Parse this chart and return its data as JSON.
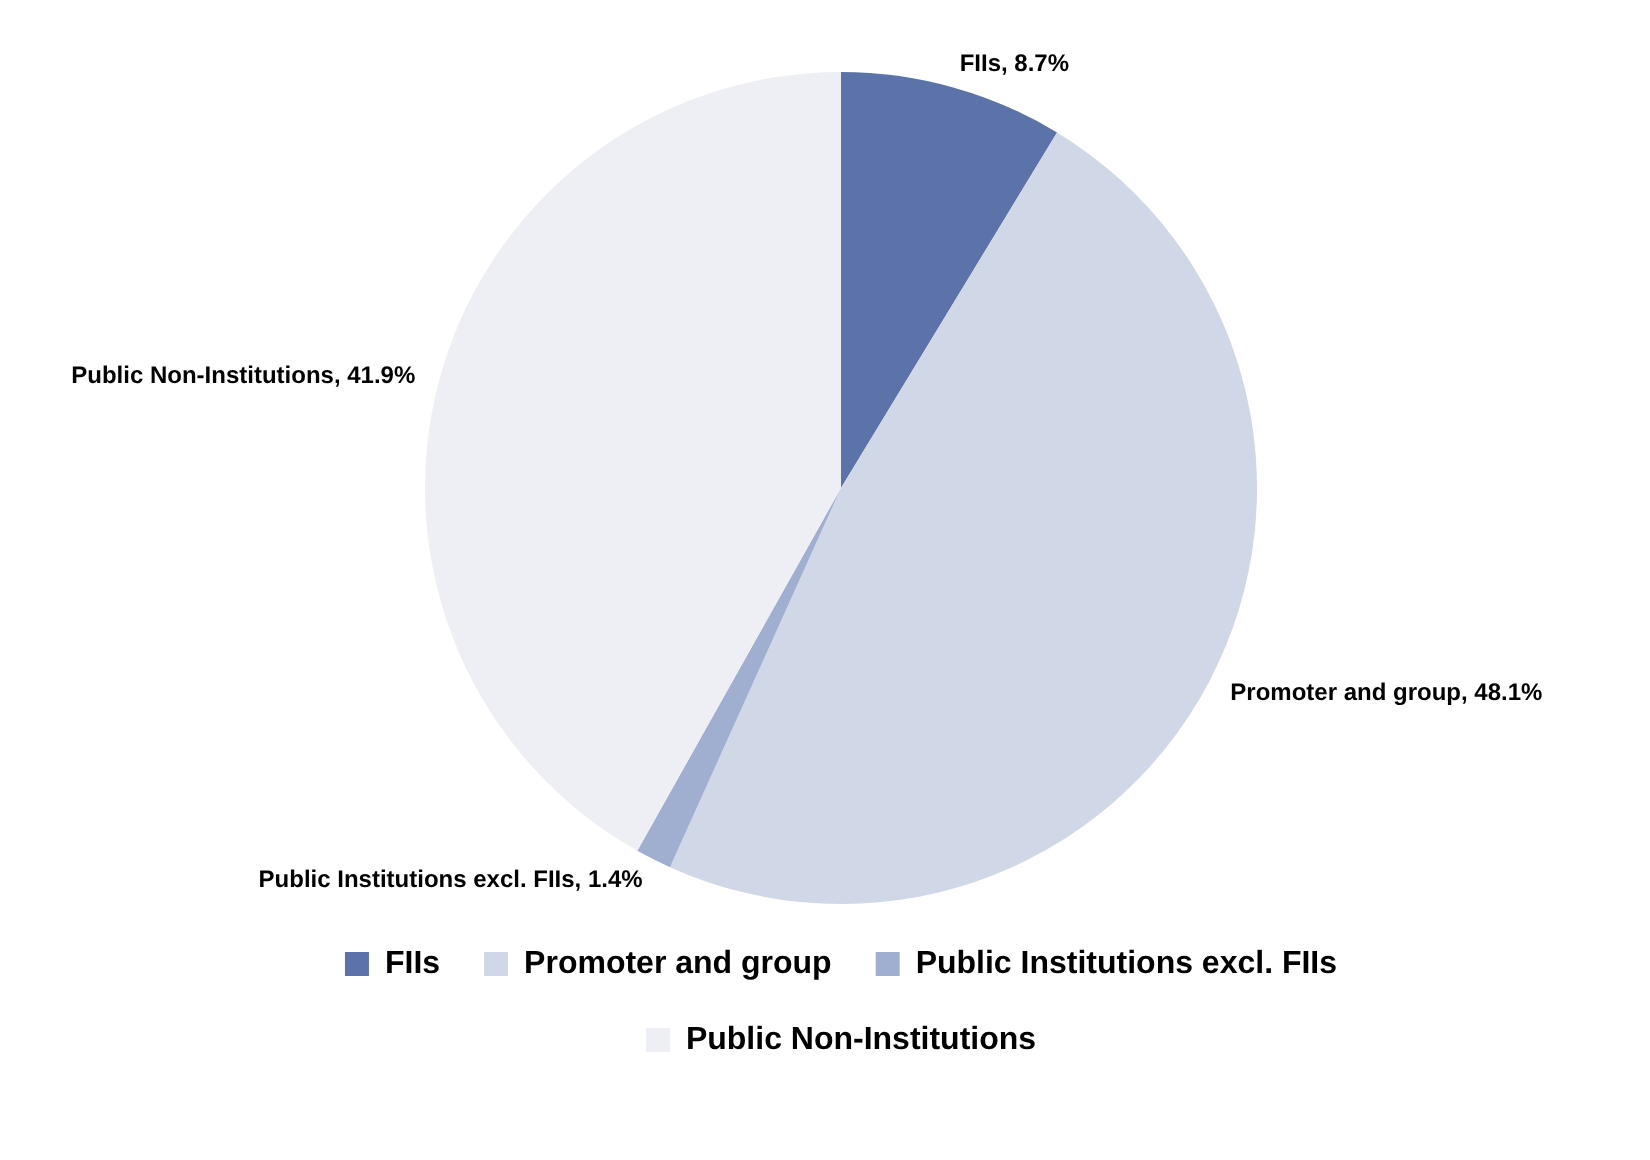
{
  "chart_data": {
    "type": "pie",
    "categories": [
      "FIIs",
      "Promoter and group",
      "Public Institutions excl. FIIs",
      "Public Non-Institutions"
    ],
    "values": [
      8.7,
      48.1,
      1.4,
      41.9
    ],
    "colors": [
      "#5b73a8",
      "#d0d7e6",
      "#a0aed0",
      "#eeeff5"
    ],
    "value_labels": [
      "FIIs, 8.7%",
      "Promoter and group, 48.1%",
      "Public Institutions excl. FIIs, 1.4%",
      "Public Non-Institutions, 41.9%"
    ],
    "legend": "bottom"
  }
}
